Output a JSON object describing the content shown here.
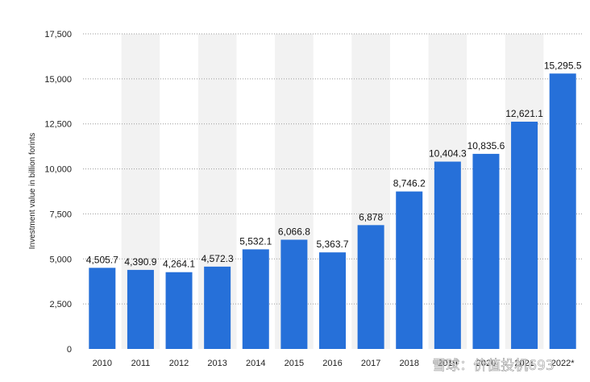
{
  "chart_data": {
    "type": "bar",
    "title": "",
    "xlabel": "",
    "ylabel": "Investment value in billion forints",
    "ylim": [
      0,
      17500
    ],
    "yticks": [
      0,
      2500,
      5000,
      7500,
      10000,
      12500,
      15000,
      17500
    ],
    "ytick_labels": [
      "0",
      "2,500",
      "5,000",
      "7,500",
      "10,000",
      "12,500",
      "15,000",
      "17,500"
    ],
    "grid": true,
    "categories": [
      "2010",
      "2011",
      "2012",
      "2013",
      "2014",
      "2015",
      "2016",
      "2017",
      "2018",
      "2019",
      "2020",
      "2021",
      "2022*"
    ],
    "values": [
      4505.7,
      4390.9,
      4264.1,
      4572.3,
      5532.1,
      6066.8,
      5363.7,
      6878,
      8746.2,
      10404.3,
      10835.6,
      12621.1,
      15295.5
    ],
    "value_labels": [
      "4,505.7",
      "4,390.9",
      "4,264.1",
      "4,572.3",
      "5,532.1",
      "6,066.8",
      "5,363.7",
      "6,878",
      "8,746.2",
      "10,404.3",
      "10,835.6",
      "12,621.1",
      "15,295.5"
    ],
    "bar_color": "#2670d9",
    "alt_band_color": "#f2f2f2"
  },
  "watermark": {
    "text": "雪球：价值投机693"
  }
}
